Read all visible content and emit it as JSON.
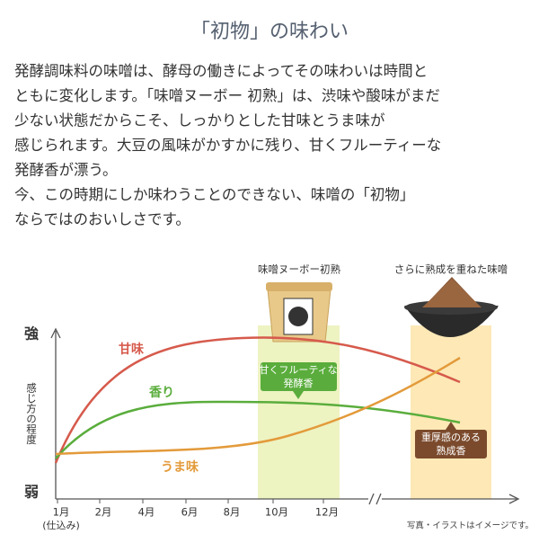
{
  "header": {
    "title": "「初物」の味わい"
  },
  "body": {
    "lines": [
      "発酵調味料の味噌は、酵母の働きによってその味わいは時間と",
      "ともに変化します。「味噌ヌーボー 初熟」は、渋味や酸味がまだ",
      "少ない状態だからこそ、しっかりとした甘味とうま味が",
      "感じられます。大豆の風味がかすかに残り、甘くフルーティーな",
      "発酵香が漂う。",
      "今、この時期にしか味わうことのできない、味噌の「初物」",
      "ならではのおいしさです。"
    ]
  },
  "chart": {
    "products": [
      "味噌ヌーボー初熟",
      "さらに熟成を重ねた味噌"
    ],
    "y_top": "強",
    "y_bottom": "弱",
    "y_label": "感じ方の程度",
    "x_labels": [
      "1月",
      "2月",
      "4月",
      "6月",
      "8月",
      "10月",
      "12月"
    ],
    "x_note": "(仕込み)",
    "curves": [
      "甘味",
      "香り",
      "うま味"
    ],
    "callout_green": [
      "甘くフルーティな",
      "発酵香"
    ],
    "callout_brown": [
      "重厚感のある",
      "熟成香"
    ]
  },
  "footer": {
    "note": "写真・イラストはイメージです。"
  }
}
